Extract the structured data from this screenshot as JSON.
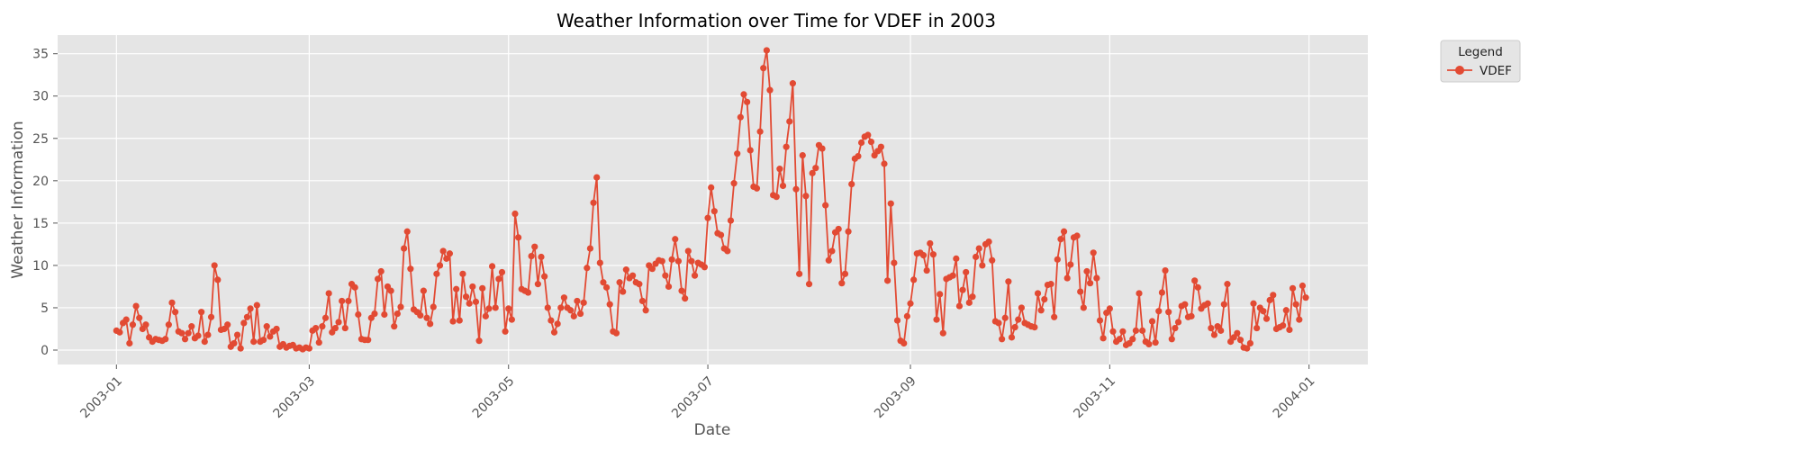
{
  "chart_data": {
    "type": "line",
    "title": "Weather Information over Time for VDEF in 2003",
    "xlabel": "Date",
    "ylabel": "Weather Information",
    "x_type": "date",
    "xlim": [
      "2002-12-14",
      "2004-01-19"
    ],
    "ylim": [
      -1.7,
      37.2
    ],
    "y_ticks": [
      0,
      5,
      10,
      15,
      20,
      25,
      30,
      35
    ],
    "x_ticks": [
      "2003-01-01",
      "2003-03-01",
      "2003-05-01",
      "2003-07-01",
      "2003-09-01",
      "2003-11-01",
      "2004-01-01"
    ],
    "x_tick_labels": [
      "2003-01",
      "2003-03",
      "2003-05",
      "2003-07",
      "2003-09",
      "2003-11",
      "2004-01"
    ],
    "grid": true,
    "legend": {
      "title": "Legend",
      "placement": "outside-top-right"
    },
    "x_start": "2003-01-01",
    "series": [
      {
        "name": "VDEF",
        "color": "#E24A33",
        "marker": "circle",
        "values": [
          2.3,
          2.1,
          3.2,
          3.6,
          0.8,
          3.0,
          5.2,
          3.8,
          2.5,
          3.0,
          1.5,
          1.0,
          1.3,
          1.2,
          1.1,
          1.3,
          3.0,
          5.6,
          4.5,
          2.2,
          2.0,
          1.3,
          2.0,
          2.8,
          1.4,
          1.7,
          4.5,
          1.0,
          1.8,
          3.9,
          10.0,
          8.3,
          2.4,
          2.5,
          3.0,
          0.4,
          0.8,
          1.8,
          0.2,
          3.2,
          3.9,
          4.9,
          1.0,
          5.3,
          1.0,
          1.2,
          2.8,
          1.6,
          2.2,
          2.5,
          0.4,
          0.7,
          0.3,
          0.5,
          0.6,
          0.2,
          0.3,
          0.1,
          0.3,
          0.2,
          2.3,
          2.6,
          0.9,
          2.8,
          3.8,
          6.7,
          2.1,
          2.6,
          3.3,
          5.8,
          2.6,
          5.8,
          7.8,
          7.4,
          4.2,
          1.3,
          1.2,
          1.2,
          3.8,
          4.3,
          8.4,
          9.3,
          4.2,
          7.5,
          7.0,
          2.8,
          4.3,
          5.1,
          12.0,
          14.0,
          9.6,
          4.8,
          4.5,
          4.1,
          7.0,
          3.8,
          3.1,
          5.1,
          9.0,
          10.0,
          11.7,
          10.8,
          11.4,
          3.4,
          7.2,
          3.5,
          9.0,
          6.3,
          5.5,
          7.5,
          5.7,
          1.1,
          7.3,
          4.0,
          4.9,
          9.9,
          5.0,
          8.4,
          9.2,
          2.2,
          4.9,
          3.6,
          16.1,
          13.3,
          7.2,
          7.0,
          6.8,
          11.1,
          12.2,
          7.8,
          11.0,
          8.7,
          5.0,
          3.5,
          2.1,
          3.1,
          5.0,
          6.2,
          5.0,
          4.7,
          4.0,
          5.8,
          4.3,
          5.6,
          9.7,
          12.0,
          17.4,
          20.4,
          10.3,
          8.0,
          7.4,
          5.4,
          2.2,
          2.0,
          8.0,
          6.9,
          9.5,
          8.5,
          8.8,
          8.0,
          7.8,
          5.8,
          4.7,
          10.0,
          9.6,
          10.2,
          10.6,
          10.5,
          8.8,
          7.5,
          10.7,
          13.1,
          10.5,
          7.0,
          6.1,
          11.7,
          10.5,
          8.8,
          10.3,
          10.1,
          9.8,
          15.6,
          19.2,
          16.4,
          13.8,
          13.6,
          12.0,
          11.7,
          15.3,
          19.7,
          23.2,
          27.5,
          30.2,
          29.3,
          23.6,
          19.3,
          19.1,
          25.8,
          33.3,
          35.4,
          30.7,
          18.3,
          18.1,
          21.4,
          19.4,
          24.0,
          27.0,
          31.5,
          19.0,
          9.0,
          23.0,
          18.2,
          7.8,
          20.9,
          21.5,
          24.2,
          23.8,
          17.1,
          10.6,
          11.7,
          13.9,
          14.3,
          7.9,
          9.0,
          14.0,
          19.6,
          22.6,
          22.9,
          24.5,
          25.2,
          25.4,
          24.6,
          23.0,
          23.5,
          24.0,
          22.0,
          8.2,
          17.3,
          10.3,
          3.5,
          1.1,
          0.8,
          4.0,
          5.5,
          8.3,
          11.4,
          11.5,
          11.2,
          9.4,
          12.6,
          11.3,
          3.6,
          6.6,
          2.0,
          8.4,
          8.6,
          8.8,
          10.8,
          5.2,
          7.1,
          9.2,
          5.6,
          6.3,
          11.0,
          12.0,
          10.0,
          12.5,
          12.8,
          10.6,
          3.4,
          3.2,
          1.3,
          3.8,
          8.1,
          1.5,
          2.7,
          3.6,
          5.0,
          3.2,
          3.0,
          2.8,
          2.7,
          6.7,
          4.7,
          6.0,
          7.7,
          7.8,
          3.9,
          10.7,
          13.1,
          14.0,
          8.5,
          10.1,
          13.3,
          13.5,
          6.9,
          5.0,
          9.3,
          7.9,
          11.5,
          8.5,
          3.5,
          1.4,
          4.4,
          4.9,
          2.2,
          1.0,
          1.3,
          2.2,
          0.6,
          0.8,
          1.3,
          2.3,
          6.7,
          2.3,
          1.0,
          0.7,
          3.4,
          0.9,
          4.6,
          6.8,
          9.4,
          4.5,
          1.3,
          2.6,
          3.3,
          5.2,
          5.4,
          3.9,
          4.0,
          8.2,
          7.4,
          4.9,
          5.3,
          5.5,
          2.6,
          1.8,
          2.8,
          2.3,
          5.4,
          7.8,
          1.0,
          1.5,
          2.0,
          1.2,
          0.3,
          0.2,
          0.8,
          5.5,
          2.6,
          5.0,
          4.6,
          3.7,
          5.9,
          6.5,
          2.5,
          2.7,
          2.9,
          4.7,
          2.4,
          7.3,
          5.4,
          3.6,
          7.6,
          6.2
        ]
      }
    ]
  }
}
